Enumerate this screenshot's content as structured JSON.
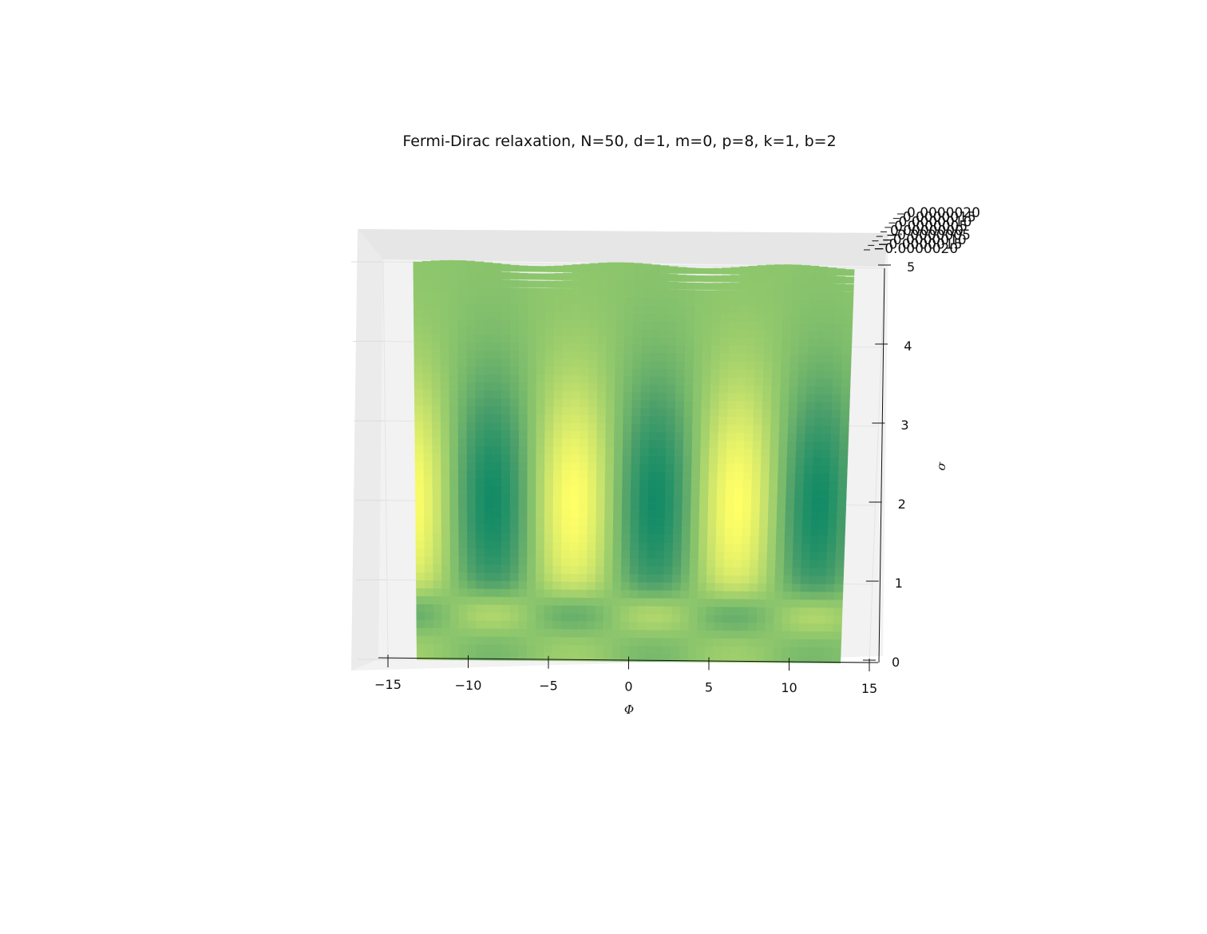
{
  "chart_data": {
    "type": "surface",
    "title": "Fermi-Dirac relaxation, N=50, d=1, m=0, p=8, k=1, b=2",
    "xlabel": "Φ",
    "ylabel": "σ",
    "zlabel": "",
    "xlim": [
      -15,
      15
    ],
    "ylim": [
      0,
      5
    ],
    "x_ticks": [
      "−15",
      "−10",
      "−5",
      "0",
      "5",
      "10",
      "15"
    ],
    "y_ticks": [
      "0",
      "1",
      "2",
      "3",
      "4",
      "5"
    ],
    "z_ticks": [
      "−0.0000020",
      "−0.0000015",
      "−0.0000010",
      "−0.0000005",
      "0.0000000",
      "0.0000005",
      "0.0000010",
      "0.0000015",
      "0.0000020"
    ],
    "x_range": [
      -13.2,
      13.2
    ],
    "y_range": [
      0,
      5
    ],
    "grid_size": [
      50,
      50
    ],
    "colormap": "summer",
    "colormap_colors": [
      "#138b66",
      "#4ea06a",
      "#8bc56c",
      "#c9e36c",
      "#ffff66"
    ],
    "grid": true,
    "view": "top-down"
  }
}
